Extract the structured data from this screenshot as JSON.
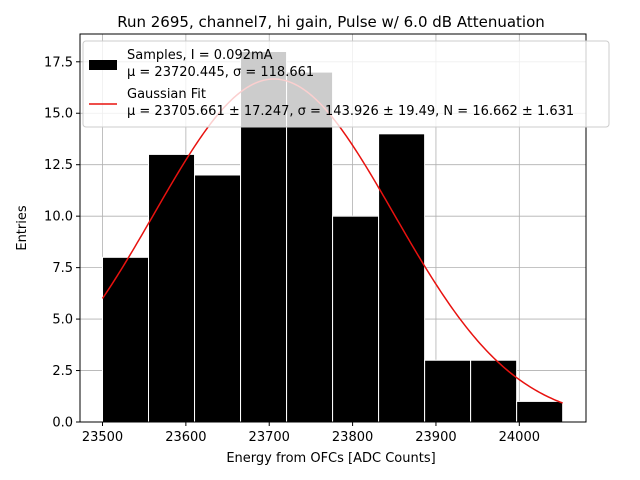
{
  "chart_data": {
    "type": "bar",
    "title": "Run 2695, channel7, hi gain, Pulse w/ 6.0 dB Attenuation",
    "xlabel": "Energy from OFCs [ADC Counts]",
    "ylabel": "Entries",
    "xlim": [
      23473,
      24080
    ],
    "ylim": [
      0,
      18.85
    ],
    "xticks": [
      23500,
      23600,
      23700,
      23800,
      23900,
      24000
    ],
    "yticks": [
      0.0,
      2.5,
      5.0,
      7.5,
      10.0,
      12.5,
      15.0,
      17.5
    ],
    "xtick_labels": [
      "23500",
      "23600",
      "23700",
      "23800",
      "23900",
      "24000"
    ],
    "ytick_labels": [
      "0.0",
      "2.5",
      "5.0",
      "7.5",
      "10.0",
      "12.5",
      "15.0",
      "17.5"
    ],
    "grid": true,
    "legend_position": "upper-right",
    "histogram": {
      "bin_edges": [
        23500,
        23555.2,
        23610.4,
        23665.6,
        23720.8,
        23776,
        23831.2,
        23886.4,
        23941.6,
        23996.8,
        24052
      ],
      "counts": [
        8,
        13,
        12,
        18,
        17,
        10,
        14,
        3,
        3,
        1
      ],
      "color": "#000000",
      "edgecolor": "#ffffff"
    },
    "fit": {
      "type": "gaussian",
      "mu": 23705.661,
      "sigma": 143.926,
      "N": 16.662,
      "x_range": [
        23500,
        24052
      ],
      "color": "#e8120f"
    },
    "series": [
      {
        "name": "Samples, I = 0.092mA",
        "name_line2": "μ = 23720.445, σ = 118.661",
        "kind": "histogram"
      },
      {
        "name": "Gaussian Fit",
        "name_line2": "μ = 23705.661 ± 17.247, σ = 143.926 ± 19.49, N = 16.662 ± 1.631",
        "kind": "line"
      }
    ]
  }
}
